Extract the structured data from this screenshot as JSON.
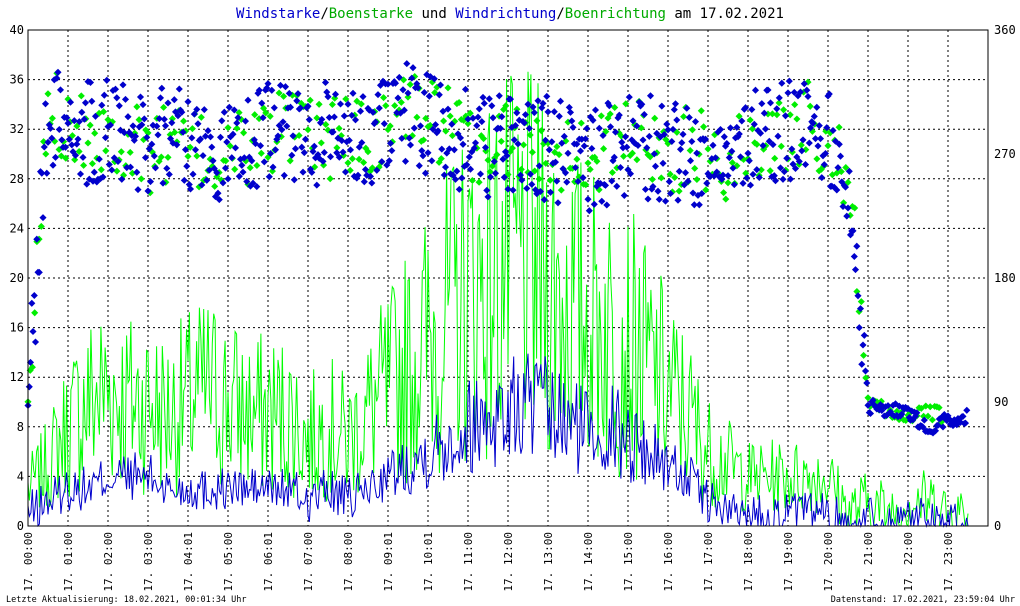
{
  "title": {
    "parts": [
      {
        "text": "Windstarke",
        "color": "#0000cc"
      },
      {
        "text": "/",
        "color": "#000000"
      },
      {
        "text": "Boenstarke",
        "color": "#00aa00"
      },
      {
        "text": " und ",
        "color": "#000000"
      },
      {
        "text": "Windrichtung",
        "color": "#0000cc"
      },
      {
        "text": "/",
        "color": "#000000"
      },
      {
        "text": "Boenrichtung",
        "color": "#00aa00"
      },
      {
        "text": " am 17.02.2021",
        "color": "#000000"
      }
    ]
  },
  "footer": {
    "left": "Letzte Aktualisierung: 18.02.2021, 00:01:34 Uhr",
    "right": "Datenstand: 17.02.2021, 23:59:04 Uhr"
  },
  "colors": {
    "wind": "#0000cc",
    "gust": "#00ff00",
    "wind_dir": "#0000cc",
    "gust_dir": "#00ee00",
    "grid": "#000000"
  },
  "chart_data": {
    "type": "line",
    "title": "Windstarke/Boenstarke und Windrichtung/Boenrichtung am 17.02.2021",
    "y_left": {
      "min": 0,
      "max": 40,
      "ticks": [
        "0",
        "4",
        "8",
        "12",
        "16",
        "20",
        "24",
        "28",
        "32",
        "36",
        "40"
      ]
    },
    "y_right": {
      "min": 0,
      "max": 360,
      "ticks": [
        "0",
        "90",
        "180",
        "270",
        "360"
      ]
    },
    "x_range_hours": [
      0,
      24
    ],
    "x_ticks": [
      "17. 00:00",
      "17. 01:00",
      "17. 02:00",
      "17. 03:00",
      "17. 04:01",
      "17. 05:00",
      "17. 06:01",
      "17. 07:00",
      "17. 08:00",
      "17. 09:01",
      "17. 10:01",
      "17. 11:00",
      "17. 12:00",
      "17. 13:00",
      "17. 14:00",
      "17. 15:00",
      "17. 16:00",
      "17. 17:00",
      "17. 18:00",
      "17. 19:00",
      "17. 20:00",
      "17. 21:00",
      "17. 22:00",
      "17. 23:00"
    ],
    "grid": true,
    "series": [
      {
        "name": "Windstarke",
        "axis": "left",
        "style": "line",
        "x": [
          0,
          0.5,
          1,
          1.5,
          2,
          2.5,
          3,
          3.5,
          4,
          4.5,
          5,
          5.5,
          6,
          6.5,
          7,
          7.5,
          8,
          8.5,
          9,
          9.5,
          10,
          10.5,
          11,
          11.5,
          12,
          12.5,
          13,
          13.5,
          14,
          14.5,
          15,
          15.5,
          16,
          16.5,
          17,
          17.5,
          18,
          18.5,
          19,
          19.5,
          20,
          20.5,
          21,
          21.5,
          22,
          22.5,
          23,
          23.5
        ],
        "y": [
          1,
          2,
          3,
          3,
          4,
          4,
          4,
          3,
          3,
          3,
          3,
          3,
          3,
          3,
          2,
          3,
          2,
          3,
          4,
          5,
          6,
          7,
          8,
          9,
          9,
          10,
          9,
          8,
          8,
          8,
          7,
          6,
          5,
          4,
          2,
          1,
          1,
          1,
          1,
          1,
          1,
          0,
          1,
          0,
          1,
          1,
          0,
          0
        ]
      },
      {
        "name": "Boenstarke",
        "axis": "left",
        "style": "line",
        "x": [
          0,
          0.5,
          1,
          1.5,
          2,
          2.5,
          3,
          3.5,
          4,
          4.5,
          5,
          5.5,
          6,
          6.5,
          7,
          7.5,
          8,
          8.5,
          9,
          9.5,
          10,
          10.5,
          11,
          11.5,
          12,
          12.5,
          13,
          13.5,
          14,
          14.5,
          15,
          15.5,
          16,
          16.5,
          17,
          17.5,
          18,
          18.5,
          19,
          19.5,
          20,
          20.5,
          21,
          21.5,
          22,
          22.5,
          23,
          23.5
        ],
        "y": [
          3,
          5,
          8,
          10,
          11,
          10,
          10,
          9,
          10,
          11,
          10,
          9,
          9,
          9,
          7,
          8,
          7,
          9,
          11,
          13,
          15,
          17,
          19,
          20,
          21,
          21,
          20,
          18,
          17,
          16,
          15,
          13,
          11,
          9,
          6,
          5,
          4,
          4,
          4,
          4,
          4,
          1,
          2,
          1,
          2,
          2,
          1,
          1
        ]
      },
      {
        "name": "Windrichtung",
        "axis": "right",
        "style": "points",
        "x": [
          0,
          0.5,
          1,
          1.5,
          2,
          2.5,
          3,
          3.5,
          4,
          4.5,
          5,
          5.5,
          6,
          6.5,
          7,
          7.5,
          8,
          8.5,
          9,
          9.5,
          10,
          10.5,
          11,
          11.5,
          12,
          12.5,
          13,
          13.5,
          14,
          14.5,
          15,
          15.5,
          16,
          16.5,
          17,
          17.5,
          18,
          18.5,
          19,
          19.5,
          20,
          20.5,
          21,
          21.5,
          22,
          22.5,
          23,
          23.5
        ],
        "y": [
          90,
          300,
          290,
          285,
          290,
          280,
          275,
          285,
          280,
          270,
          275,
          280,
          285,
          290,
          280,
          285,
          290,
          285,
          295,
          300,
          290,
          285,
          280,
          275,
          280,
          270,
          275,
          270,
          265,
          270,
          275,
          275,
          270,
          270,
          265,
          270,
          280,
          280,
          285,
          290,
          280,
          260,
          88,
          85,
          82,
          70,
          78,
          80
        ]
      },
      {
        "name": "Boenrichtung",
        "axis": "right",
        "style": "points",
        "x": [
          0,
          0.5,
          1,
          1.5,
          2,
          2.5,
          3,
          3.5,
          4,
          4.5,
          5,
          5.5,
          6,
          6.5,
          7,
          7.5,
          8,
          8.5,
          9,
          9.5,
          10,
          10.5,
          11,
          11.5,
          12,
          12.5,
          13,
          13.5,
          14,
          14.5,
          15,
          15.5,
          16,
          16.5,
          17,
          17.5,
          18,
          18.5,
          19,
          19.5,
          20,
          20.5,
          21,
          21.5,
          22,
          22.5,
          23
        ],
        "y": [
          85,
          305,
          295,
          290,
          285,
          280,
          270,
          280,
          275,
          265,
          270,
          275,
          285,
          285,
          285,
          280,
          285,
          280,
          290,
          305,
          295,
          290,
          275,
          270,
          285,
          265,
          280,
          270,
          270,
          275,
          280,
          280,
          270,
          275,
          270,
          265,
          275,
          285,
          280,
          295,
          280,
          260,
          88,
          83,
          80,
          82,
          80
        ]
      }
    ]
  }
}
